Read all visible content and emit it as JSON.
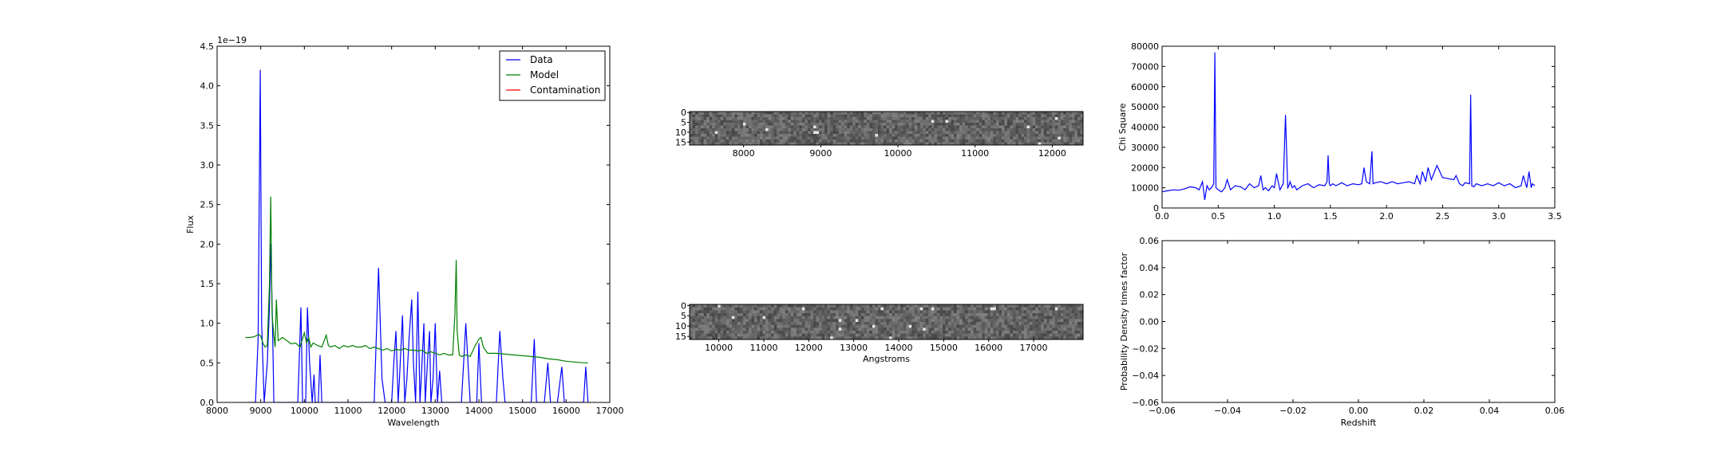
{
  "chart_data": [
    {
      "id": "spectrum",
      "type": "line",
      "xlabel": "Wavelength",
      "ylabel": "Flux",
      "offset_label": "1e−19",
      "xlim": [
        8000,
        17000
      ],
      "ylim": [
        0,
        4.5
      ],
      "xticks": [
        8000,
        9000,
        10000,
        11000,
        12000,
        13000,
        14000,
        15000,
        16000,
        17000
      ],
      "yticks": [
        0.0,
        0.5,
        1.0,
        1.5,
        2.0,
        2.5,
        3.0,
        3.5,
        4.0,
        4.5
      ],
      "ytick_labels": [
        "0.0",
        "0.5",
        "1.0",
        "1.5",
        "2.0",
        "2.5",
        "3.0",
        "3.5",
        "4.0",
        "4.5"
      ],
      "legend_position": "top-right",
      "legend": [
        "Data",
        "Model",
        "Contamination"
      ],
      "series": [
        {
          "name": "Data",
          "color": "#0000ff",
          "x": [
            8700,
            8880,
            8940,
            8990,
            9020,
            9080,
            9150,
            9200,
            9230,
            9270,
            9300,
            9850,
            9880,
            9920,
            9960,
            10030,
            10070,
            10120,
            10180,
            10220,
            10250,
            10320,
            10360,
            10400,
            10480,
            10500,
            10530,
            10560,
            10600,
            11000,
            11600,
            11700,
            11780,
            11850,
            12000,
            12050,
            12100,
            12150,
            12180,
            12250,
            12300,
            12350,
            12400,
            12460,
            12500,
            12550,
            12600,
            12650,
            12680,
            12740,
            12770,
            12820,
            12870,
            12900,
            12950,
            13000,
            13050,
            13100,
            13150,
            13200,
            13250,
            13300,
            13350,
            13500,
            13600,
            13650,
            13700,
            13750,
            13800,
            13900,
            13950,
            14000,
            14060,
            14100,
            14150,
            14200,
            14300,
            14400,
            14480,
            14550,
            14600,
            14700,
            14800,
            15100,
            15200,
            15270,
            15320,
            15350,
            15400,
            15500,
            15580,
            15640,
            15700,
            15800,
            15900,
            15960,
            16020,
            16100,
            16300,
            16400,
            16450,
            16500
          ],
          "y": [
            0,
            0,
            0.8,
            4.2,
            1.0,
            0,
            0.5,
            1.2,
            2.0,
            1.0,
            0,
            0,
            0.5,
            1.2,
            0,
            0,
            1.2,
            0.5,
            0,
            0.35,
            0,
            0,
            0.6,
            0,
            0,
            0,
            0,
            0,
            0,
            0,
            0,
            1.7,
            0.3,
            0,
            0,
            0.5,
            0.9,
            0,
            0.3,
            1.1,
            0,
            0.3,
            0.8,
            1.3,
            0.5,
            0,
            1.4,
            0,
            0.3,
            1.0,
            0,
            0.5,
            0.9,
            0,
            0.3,
            1.0,
            0,
            0.4,
            0,
            0,
            0,
            0,
            0,
            0,
            0,
            0.5,
            1.0,
            0.5,
            0,
            0,
            0,
            0.75,
            0,
            0,
            0,
            0,
            0,
            0,
            0.9,
            0.3,
            0,
            0,
            0,
            0,
            0,
            0.8,
            0,
            0,
            0,
            0,
            0.5,
            0,
            0,
            0,
            0.45,
            0,
            0,
            0,
            0,
            0,
            0.45,
            0
          ]
        },
        {
          "name": "Model",
          "color": "#008000",
          "x": [
            8650,
            8750,
            8850,
            8950,
            9000,
            9050,
            9100,
            9150,
            9200,
            9230,
            9260,
            9300,
            9330,
            9360,
            9400,
            9500,
            9600,
            9700,
            9800,
            9900,
            10000,
            10050,
            10100,
            10150,
            10200,
            10300,
            10400,
            10500,
            10550,
            10600,
            10700,
            10800,
            10900,
            11000,
            11100,
            11200,
            11300,
            11400,
            11500,
            11600,
            11700,
            11800,
            11900,
            12000,
            12100,
            12200,
            12300,
            12400,
            12500,
            12600,
            12700,
            12800,
            12900,
            13000,
            13100,
            13200,
            13300,
            13400,
            13450,
            13480,
            13500,
            13550,
            13600,
            13700,
            13800,
            13900,
            14000,
            14050,
            14100,
            14200,
            14400,
            14600,
            14800,
            15000,
            15200,
            15400,
            15600,
            15800,
            16000,
            16200,
            16400,
            16500
          ],
          "y": [
            0.82,
            0.82,
            0.83,
            0.86,
            0.84,
            0.75,
            0.7,
            0.72,
            1.5,
            2.6,
            1.1,
            0.85,
            0.7,
            1.3,
            0.78,
            0.82,
            0.78,
            0.74,
            0.75,
            0.7,
            0.88,
            0.75,
            0.82,
            0.7,
            0.75,
            0.72,
            0.7,
            0.85,
            0.72,
            0.7,
            0.72,
            0.68,
            0.72,
            0.7,
            0.72,
            0.7,
            0.7,
            0.72,
            0.68,
            0.7,
            0.68,
            0.66,
            0.68,
            0.65,
            0.67,
            0.66,
            0.68,
            0.66,
            0.66,
            0.65,
            0.66,
            0.62,
            0.64,
            0.62,
            0.6,
            0.62,
            0.6,
            0.6,
            1.1,
            1.8,
            0.9,
            0.6,
            0.58,
            0.6,
            0.58,
            0.7,
            0.8,
            0.82,
            0.7,
            0.62,
            0.62,
            0.61,
            0.6,
            0.59,
            0.58,
            0.57,
            0.55,
            0.54,
            0.52,
            0.51,
            0.5,
            0.5
          ]
        },
        {
          "name": "Contamination",
          "color": "#ff0000",
          "x": [],
          "y": []
        }
      ]
    },
    {
      "id": "image1",
      "type": "heatmap",
      "colormap": "gray",
      "xlim": [
        7300,
        12400
      ],
      "xticks": [
        8000,
        9000,
        10000,
        11000,
        12000
      ],
      "yticks": [
        0,
        5,
        10,
        15
      ]
    },
    {
      "id": "image2",
      "type": "heatmap",
      "colormap": "gray",
      "xlabel": "Angstroms",
      "xlim": [
        9350,
        18100
      ],
      "xticks": [
        10000,
        11000,
        12000,
        13000,
        14000,
        15000,
        16000,
        17000
      ],
      "yticks": [
        0,
        5,
        10,
        15
      ]
    },
    {
      "id": "chisq",
      "type": "line",
      "ylabel": "Chi Square",
      "xlim": [
        0.0,
        3.5
      ],
      "ylim": [
        0,
        80000
      ],
      "xticks": [
        0.0,
        0.5,
        1.0,
        1.5,
        2.0,
        2.5,
        3.0,
        3.5
      ],
      "xtick_labels": [
        "0.0",
        "0.5",
        "1.0",
        "1.5",
        "2.0",
        "2.5",
        "3.0",
        "3.5"
      ],
      "yticks": [
        0,
        10000,
        20000,
        30000,
        40000,
        50000,
        60000,
        70000,
        80000
      ],
      "series": [
        {
          "color": "#0000ff",
          "x": [
            0.0,
            0.05,
            0.1,
            0.15,
            0.2,
            0.25,
            0.3,
            0.33,
            0.36,
            0.38,
            0.4,
            0.42,
            0.44,
            0.46,
            0.47,
            0.48,
            0.5,
            0.53,
            0.56,
            0.58,
            0.61,
            0.65,
            0.7,
            0.74,
            0.78,
            0.82,
            0.86,
            0.88,
            0.9,
            0.92,
            0.95,
            0.98,
            1.0,
            1.02,
            1.05,
            1.08,
            1.1,
            1.12,
            1.13,
            1.14,
            1.16,
            1.18,
            1.2,
            1.25,
            1.3,
            1.35,
            1.4,
            1.45,
            1.47,
            1.48,
            1.49,
            1.5,
            1.52,
            1.55,
            1.6,
            1.65,
            1.7,
            1.75,
            1.78,
            1.8,
            1.82,
            1.85,
            1.87,
            1.88,
            1.9,
            1.95,
            2.0,
            2.05,
            2.1,
            2.15,
            2.2,
            2.25,
            2.27,
            2.3,
            2.32,
            2.35,
            2.37,
            2.4,
            2.45,
            2.5,
            2.55,
            2.6,
            2.62,
            2.65,
            2.68,
            2.7,
            2.74,
            2.75,
            2.76,
            2.78,
            2.8,
            2.85,
            2.9,
            2.95,
            3.0,
            3.05,
            3.1,
            3.15,
            3.2,
            3.22,
            3.25,
            3.27,
            3.29,
            3.3,
            3.32
          ],
          "y": [
            8000,
            8500,
            9000,
            8800,
            9500,
            10500,
            10000,
            9000,
            13000,
            4000,
            11000,
            9000,
            10000,
            12000,
            77000,
            10000,
            9000,
            8000,
            10000,
            14000,
            9000,
            11000,
            10500,
            9000,
            12000,
            10000,
            11000,
            16000,
            9000,
            10000,
            8500,
            11000,
            10000,
            17000,
            9000,
            12000,
            46000,
            10000,
            11000,
            13000,
            10000,
            11000,
            9000,
            11000,
            12000,
            10000,
            11500,
            11000,
            13000,
            26000,
            12000,
            11000,
            12000,
            11000,
            12500,
            11000,
            12000,
            11500,
            12000,
            20000,
            13000,
            12000,
            28000,
            12000,
            12500,
            13000,
            12000,
            13000,
            12000,
            12500,
            13000,
            12000,
            16000,
            12000,
            18000,
            13000,
            20000,
            14000,
            21000,
            15000,
            14500,
            14000,
            16000,
            12000,
            11000,
            12500,
            12000,
            56000,
            11000,
            10500,
            12000,
            11000,
            12000,
            11000,
            12500,
            11000,
            12000,
            10000,
            11000,
            16000,
            10000,
            18000,
            10000,
            12000,
            11000
          ]
        }
      ]
    },
    {
      "id": "pdf",
      "type": "line",
      "xlabel": "Redshift",
      "ylabel": "Probability Density times factor",
      "xlim": [
        -0.06,
        0.06
      ],
      "ylim": [
        -0.06,
        0.06
      ],
      "xticks": [
        -0.06,
        -0.04,
        -0.02,
        0.0,
        0.02,
        0.04,
        0.06
      ],
      "xtick_labels": [
        "−0.06",
        "−0.04",
        "−0.02",
        "0.00",
        "0.02",
        "0.04",
        "0.06"
      ],
      "yticks": [
        -0.06,
        -0.04,
        -0.02,
        0.0,
        0.02,
        0.04,
        0.06
      ],
      "ytick_labels": [
        "−0.06",
        "−0.04",
        "−0.02",
        "0.00",
        "0.02",
        "0.04",
        "0.06"
      ],
      "series": []
    }
  ]
}
